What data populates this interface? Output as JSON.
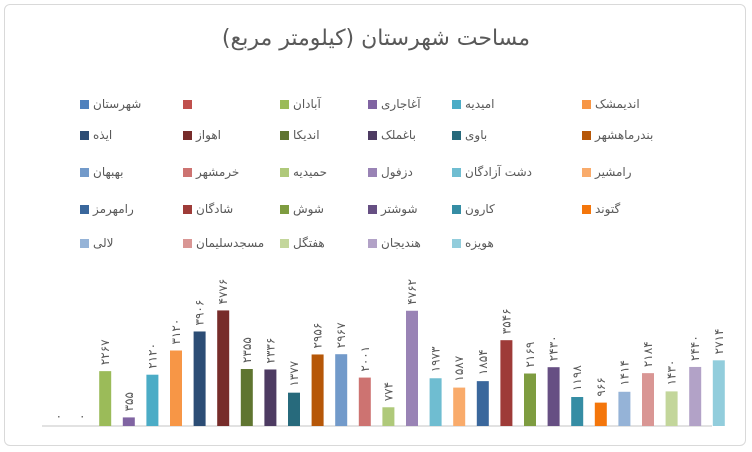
{
  "chart_data": {
    "type": "bar",
    "title": "مساحت شهرستان (کیلومتر مربع)",
    "ylim": [
      0,
      5000
    ],
    "grid": false,
    "legend_position": "top",
    "series": [
      {
        "name": "شهرستان",
        "value": 0,
        "label": "۰",
        "color": "#4f81bd"
      },
      {
        "name": "",
        "value": 0,
        "label": "۰",
        "color": "#c0504d"
      },
      {
        "name": "آبادان",
        "value": 2267,
        "label": "۲۲۶۷",
        "color": "#9bbb59"
      },
      {
        "name": "آغاجاری",
        "value": 355,
        "label": "۳۵۵",
        "color": "#8064a2"
      },
      {
        "name": "امیدیه",
        "value": 2120,
        "label": "۲۱۲۰",
        "color": "#4bacc6"
      },
      {
        "name": "اندیمشک",
        "value": 3120,
        "label": "۳۱۲۰",
        "color": "#f79646"
      },
      {
        "name": "ایذه",
        "value": 3906,
        "label": "۳۹۰۶",
        "color": "#2c4d75"
      },
      {
        "name": "اهواز",
        "value": 4776,
        "label": "۴۷۷۶",
        "color": "#772c2a"
      },
      {
        "name": "اندیکا",
        "value": 2355,
        "label": "۲۳۵۵",
        "color": "#5f7530"
      },
      {
        "name": "باغملک",
        "value": 2336,
        "label": "۲۳۳۶",
        "color": "#4d3b62"
      },
      {
        "name": "باوی",
        "value": 1377,
        "label": "۱۳۷۷",
        "color": "#276a7c"
      },
      {
        "name": "بندرماهشهر",
        "value": 2956,
        "label": "۲۹۵۶",
        "color": "#b65708"
      },
      {
        "name": "بهبهان",
        "value": 2967,
        "label": "۲۹۶۷",
        "color": "#729aca"
      },
      {
        "name": "خرمشهر",
        "value": 2001,
        "label": "۲۰۰۱",
        "color": "#cd7371"
      },
      {
        "name": "حمیدیه",
        "value": 774,
        "label": "۷۷۴",
        "color": "#afc97a"
      },
      {
        "name": "دزفول",
        "value": 4762,
        "label": "۴۷۶۲",
        "color": "#9983b5"
      },
      {
        "name": "دشت آزادگان",
        "value": 1973,
        "label": "۱۹۷۳",
        "color": "#6fbdd1"
      },
      {
        "name": "رامشیر",
        "value": 1587,
        "label": "۱۵۸۷",
        "color": "#f9ab6b"
      },
      {
        "name": "رامهرمز",
        "value": 1854,
        "label": "۱۸۵۴",
        "color": "#3a679c"
      },
      {
        "name": "شادگان",
        "value": 3546,
        "label": "۳۵۴۶",
        "color": "#9e3b38"
      },
      {
        "name": "شوش",
        "value": 2169,
        "label": "۲۱۶۹",
        "color": "#7e9c40"
      },
      {
        "name": "شوشتر",
        "value": 2430,
        "label": "۲۴۳۰",
        "color": "#664f83"
      },
      {
        "name": "کارون",
        "value": 1198,
        "label": "۱۱۹۸",
        "color": "#358da4"
      },
      {
        "name": "گتوند",
        "value": 966,
        "label": "۹۶۶",
        "color": "#f4760b"
      },
      {
        "name": "لالی",
        "value": 1414,
        "label": "۱۴۱۴",
        "color": "#95b3d7"
      },
      {
        "name": "مسجدسلیمان",
        "value": 2184,
        "label": "۲۱۸۴",
        "color": "#d99694"
      },
      {
        "name": "هفتگل",
        "value": 1430,
        "label": "۱۴۳۰",
        "color": "#c3d69b"
      },
      {
        "name": "هندیجان",
        "value": 2440,
        "label": "۲۴۴۰",
        "color": "#b2a2c7"
      },
      {
        "name": "هویزه",
        "value": 2714,
        "label": "۲۷۱۴",
        "color": "#92cddc"
      }
    ]
  }
}
